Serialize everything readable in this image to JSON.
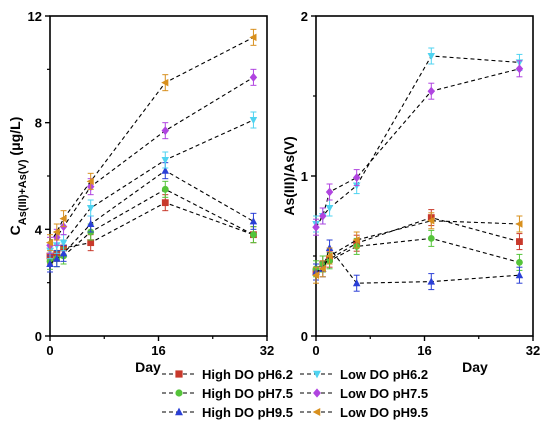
{
  "chart_data": [
    {
      "type": "line",
      "xlabel": "Day",
      "ylabel_main": "C",
      "ylabel_sub": "As(III)+As(V)",
      "ylabel_unit": " (μg/L)",
      "xlim": [
        0,
        32
      ],
      "ylim": [
        0,
        12
      ],
      "xticks": [
        0,
        16,
        32
      ],
      "yticks": [
        0,
        4,
        8,
        12
      ],
      "x": [
        0,
        1,
        2,
        6,
        17,
        30
      ],
      "series": [
        {
          "name": "High DO pH6.2",
          "color": "#c8392b",
          "marker": "square",
          "values": [
            3.0,
            3.1,
            3.3,
            3.5,
            5.0,
            3.8
          ]
        },
        {
          "name": "High DO pH7.5",
          "color": "#55c43a",
          "marker": "circle",
          "values": [
            2.8,
            2.9,
            3.0,
            3.9,
            5.5,
            3.8
          ]
        },
        {
          "name": "High DO pH9.5",
          "color": "#2a3fd6",
          "marker": "triangle",
          "values": [
            2.7,
            2.9,
            3.1,
            4.2,
            6.2,
            4.3
          ]
        },
        {
          "name": "Low DO pH6.2",
          "color": "#4fd3f0",
          "marker": "triangle-down",
          "values": [
            3.2,
            3.4,
            3.5,
            4.8,
            6.6,
            8.1
          ]
        },
        {
          "name": "Low DO pH7.5",
          "color": "#b044e0",
          "marker": "diamond",
          "values": [
            3.4,
            3.7,
            4.1,
            5.6,
            7.7,
            9.7
          ]
        },
        {
          "name": "Low DO pH9.5",
          "color": "#d8901e",
          "marker": "triangle-left",
          "values": [
            3.5,
            3.9,
            4.4,
            5.8,
            9.5,
            11.2
          ]
        }
      ]
    },
    {
      "type": "line",
      "xlabel": "Day",
      "ylabel": "As(III)/As(V)",
      "xlim": [
        0,
        32
      ],
      "ylim": [
        0,
        2
      ],
      "xticks": [
        0,
        16,
        32
      ],
      "yticks": [
        0,
        1,
        2
      ],
      "x": [
        0,
        1,
        2,
        6,
        17,
        30
      ],
      "series": [
        {
          "name": "High DO pH6.2",
          "color": "#c8392b",
          "marker": "square",
          "values": [
            0.4,
            0.45,
            0.48,
            0.58,
            0.74,
            0.59
          ]
        },
        {
          "name": "High DO pH7.5",
          "color": "#55c43a",
          "marker": "circle",
          "values": [
            0.42,
            0.45,
            0.47,
            0.56,
            0.61,
            0.46
          ]
        },
        {
          "name": "High DO pH9.5",
          "color": "#2a3fd6",
          "marker": "triangle",
          "values": [
            0.4,
            0.42,
            0.55,
            0.33,
            0.34,
            0.38
          ]
        },
        {
          "name": "Low DO pH6.2",
          "color": "#4fd3f0",
          "marker": "triangle-down",
          "values": [
            0.7,
            0.75,
            0.8,
            0.94,
            1.75,
            1.71
          ]
        },
        {
          "name": "Low DO pH7.5",
          "color": "#b044e0",
          "marker": "diamond",
          "values": [
            0.68,
            0.75,
            0.9,
            0.99,
            1.53,
            1.67
          ]
        },
        {
          "name": "Low DO pH9.5",
          "color": "#d8901e",
          "marker": "triangle-left",
          "values": [
            0.38,
            0.42,
            0.5,
            0.6,
            0.72,
            0.7
          ]
        }
      ]
    }
  ],
  "legend": {
    "placement": "bottom",
    "entries": [
      "High DO pH6.2",
      "Low DO pH6.2",
      "High DO pH7.5",
      "Low DO pH7.5",
      "High DO pH9.5",
      "Low DO pH9.5"
    ]
  }
}
